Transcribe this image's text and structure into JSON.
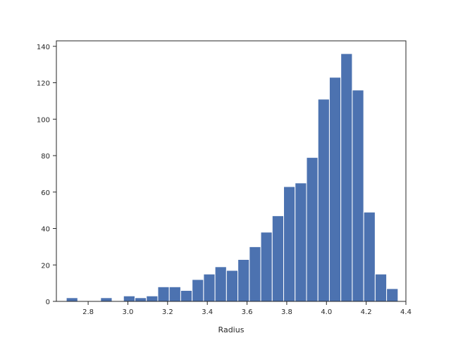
{
  "chart_data": {
    "type": "bar",
    "subtype": "histogram",
    "title": "",
    "xlabel": "Radius",
    "ylabel": "",
    "xlim": [
      2.64,
      4.4
    ],
    "ylim": [
      0,
      143
    ],
    "bin_width": 0.0576,
    "bin_start": 2.69,
    "counts": [
      2,
      0,
      0,
      2,
      0,
      3,
      2,
      3,
      8,
      8,
      6,
      12,
      15,
      19,
      17,
      23,
      30,
      38,
      47,
      63,
      65,
      79,
      111,
      123,
      136,
      116,
      49,
      15,
      7
    ],
    "x_ticks": [
      "2.8",
      "3.0",
      "3.2",
      "3.4",
      "3.6",
      "3.8",
      "4.0",
      "4.2",
      "4.4"
    ],
    "x_tick_values": [
      2.8,
      3.0,
      3.2,
      3.4,
      3.6,
      3.8,
      4.0,
      4.2,
      4.4
    ],
    "y_ticks": [
      "0",
      "20",
      "40",
      "60",
      "80",
      "100",
      "120",
      "140"
    ],
    "y_tick_values": [
      0,
      20,
      40,
      60,
      80,
      100,
      120,
      140
    ],
    "bar_color": "#4c72b0",
    "grid": false,
    "legend": "none"
  }
}
